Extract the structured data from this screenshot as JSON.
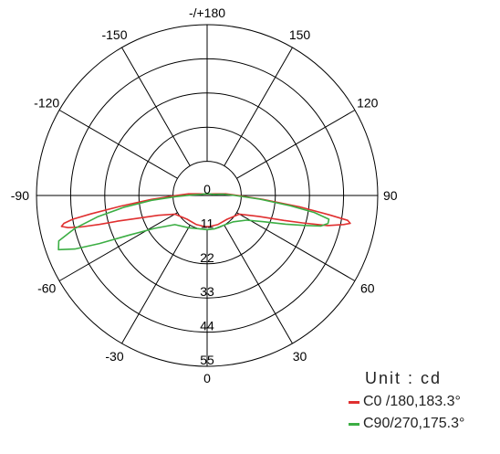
{
  "chart_data": {
    "type": "polar-line",
    "angle_labels": [
      {
        "angle": 180,
        "label": "-/+180"
      },
      {
        "angle": -150,
        "label": "-150"
      },
      {
        "angle": 150,
        "label": "150"
      },
      {
        "angle": -120,
        "label": "-120"
      },
      {
        "angle": 120,
        "label": "120"
      },
      {
        "angle": -90,
        "label": "-90"
      },
      {
        "angle": 90,
        "label": "90"
      },
      {
        "angle": -60,
        "label": "-60"
      },
      {
        "angle": 60,
        "label": "60"
      },
      {
        "angle": -30,
        "label": "-30"
      },
      {
        "angle": 30,
        "label": "30"
      },
      {
        "angle": 0,
        "label": "0"
      }
    ],
    "radial_ticks": [
      "0",
      "11",
      "22",
      "33",
      "44",
      "55"
    ],
    "r_max": 55,
    "unit_label": "Unit : cd",
    "series": [
      {
        "name": "C0  /180,183.3°",
        "color": "#e03030",
        "points": [
          [
            -180,
            0.5
          ],
          [
            -150,
            0.6
          ],
          [
            -120,
            1
          ],
          [
            -100,
            3
          ],
          [
            -95,
            6
          ],
          [
            -90,
            10
          ],
          [
            -86,
            18
          ],
          [
            -83,
            28
          ],
          [
            -81,
            38
          ],
          [
            -80,
            44
          ],
          [
            -79,
            47
          ],
          [
            -78,
            48
          ],
          [
            -77,
            46
          ],
          [
            -76,
            42
          ],
          [
            -75,
            36
          ],
          [
            -74,
            30
          ],
          [
            -72,
            24
          ],
          [
            -68,
            17
          ],
          [
            -60,
            12
          ],
          [
            -40,
            10
          ],
          [
            -20,
            10
          ],
          [
            -5,
            10
          ],
          [
            0,
            10
          ],
          [
            5,
            10
          ],
          [
            20,
            10
          ],
          [
            40,
            10
          ],
          [
            60,
            12
          ],
          [
            68,
            18
          ],
          [
            72,
            26
          ],
          [
            74,
            32
          ],
          [
            76,
            40
          ],
          [
            78,
            45
          ],
          [
            79,
            47
          ],
          [
            80,
            46
          ],
          [
            81,
            40
          ],
          [
            83,
            30
          ],
          [
            86,
            18
          ],
          [
            90,
            10
          ],
          [
            95,
            6
          ],
          [
            100,
            3
          ],
          [
            120,
            1
          ],
          [
            150,
            0.6
          ],
          [
            180,
            0.5
          ]
        ]
      },
      {
        "name": "C90/270,175.3°",
        "color": "#3cae44",
        "points": [
          [
            -180,
            0.5
          ],
          [
            -150,
            0.6
          ],
          [
            -120,
            1
          ],
          [
            -100,
            2
          ],
          [
            -92,
            5
          ],
          [
            -88,
            10
          ],
          [
            -85,
            18
          ],
          [
            -82,
            27
          ],
          [
            -79,
            36
          ],
          [
            -76,
            44
          ],
          [
            -73,
            50
          ],
          [
            -70,
            51
          ],
          [
            -68,
            46
          ],
          [
            -66,
            38
          ],
          [
            -63,
            28
          ],
          [
            -58,
            20
          ],
          [
            -48,
            14
          ],
          [
            -30,
            12
          ],
          [
            -12,
            11
          ],
          [
            0,
            11
          ],
          [
            12,
            11
          ],
          [
            30,
            11
          ],
          [
            45,
            12
          ],
          [
            58,
            15
          ],
          [
            65,
            20
          ],
          [
            70,
            27
          ],
          [
            73,
            33
          ],
          [
            75,
            38
          ],
          [
            77,
            40
          ],
          [
            79,
            40
          ],
          [
            81,
            35
          ],
          [
            83,
            27
          ],
          [
            86,
            17
          ],
          [
            90,
            9
          ],
          [
            95,
            5
          ],
          [
            100,
            2
          ],
          [
            120,
            1
          ],
          [
            150,
            0.6
          ],
          [
            180,
            0.5
          ]
        ]
      }
    ]
  }
}
